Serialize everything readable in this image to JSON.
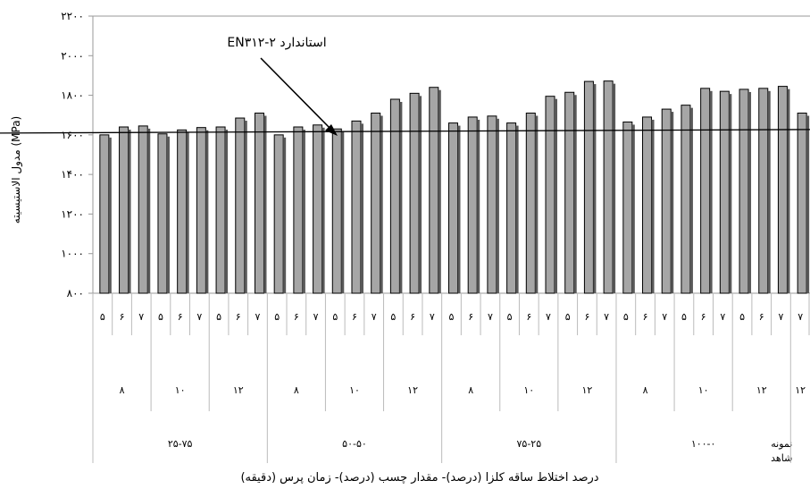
{
  "chart_data": {
    "type": "bar",
    "ylabel": "مدول الاستیسیته (MPa)",
    "xlabel": "درصد اختلاط ساقه کلزا (درصد)- مقدار چسب (درصد)- زمان پرس (دقیقه)",
    "ylim": [
      800,
      2200
    ],
    "yticks": [
      "۸۰۰",
      "۱۰۰۰",
      "۱۲۰۰",
      "۱۴۰۰",
      "۱۶۰۰",
      "۱۸۰۰",
      "۲۰۰۰",
      "۲۲۰۰"
    ],
    "yticks_values": [
      800,
      1000,
      1200,
      1400,
      1600,
      1800,
      2000,
      2200
    ],
    "grid": false,
    "reference_line": {
      "label": "استاندارد ۲-EN۳۱۲",
      "value": 1600
    },
    "categories": [
      "۵",
      "۶",
      "۷",
      "۵",
      "۶",
      "۷",
      "۵",
      "۶",
      "۷",
      "۵",
      "۶",
      "۷",
      "۵",
      "۶",
      "۷",
      "۵",
      "۶",
      "۷",
      "۵",
      "۶",
      "۷",
      "۵",
      "۶",
      "۷",
      "۵",
      "۶",
      "۷",
      "۵",
      "۶",
      "۷",
      "۵",
      "۶",
      "۷",
      "۵",
      "۶",
      "۷",
      "۷"
    ],
    "values": [
      1600,
      1640,
      1645,
      1605,
      1625,
      1637,
      1640,
      1685,
      1710,
      1600,
      1640,
      1650,
      1630,
      1670,
      1710,
      1780,
      1810,
      1840,
      1660,
      1690,
      1695,
      1660,
      1710,
      1795,
      1815,
      1870,
      1872,
      1665,
      1690,
      1730,
      1750,
      1835,
      1820,
      1830,
      1835,
      1845,
      1710
    ],
    "glue_groups": [
      {
        "label": "۸",
        "count": 3
      },
      {
        "label": "۱۰",
        "count": 3
      },
      {
        "label": "۱۲",
        "count": 3
      },
      {
        "label": "۸",
        "count": 3
      },
      {
        "label": "۱۰",
        "count": 3
      },
      {
        "label": "۱۲",
        "count": 3
      },
      {
        "label": "۸",
        "count": 3
      },
      {
        "label": "۱۰",
        "count": 3
      },
      {
        "label": "۱۲",
        "count": 3
      },
      {
        "label": "۸",
        "count": 3
      },
      {
        "label": "۱۰",
        "count": 3
      },
      {
        "label": "۱۲",
        "count": 3
      },
      {
        "label": "۱۲",
        "count": 1
      }
    ],
    "mix_groups": [
      {
        "label": "۲۵-۷۵",
        "count": 9
      },
      {
        "label": "۵۰-۵۰",
        "count": 9
      },
      {
        "label": "۷۵-۲۵",
        "count": 9
      },
      {
        "label": "۱۰۰-۰",
        "count": 9
      },
      {
        "label": "نمونه شاهد",
        "count": 1
      }
    ],
    "colors": {
      "bar": "#a6a6a6",
      "bar_edge": "#000000",
      "bar_shade": "#595959"
    }
  }
}
